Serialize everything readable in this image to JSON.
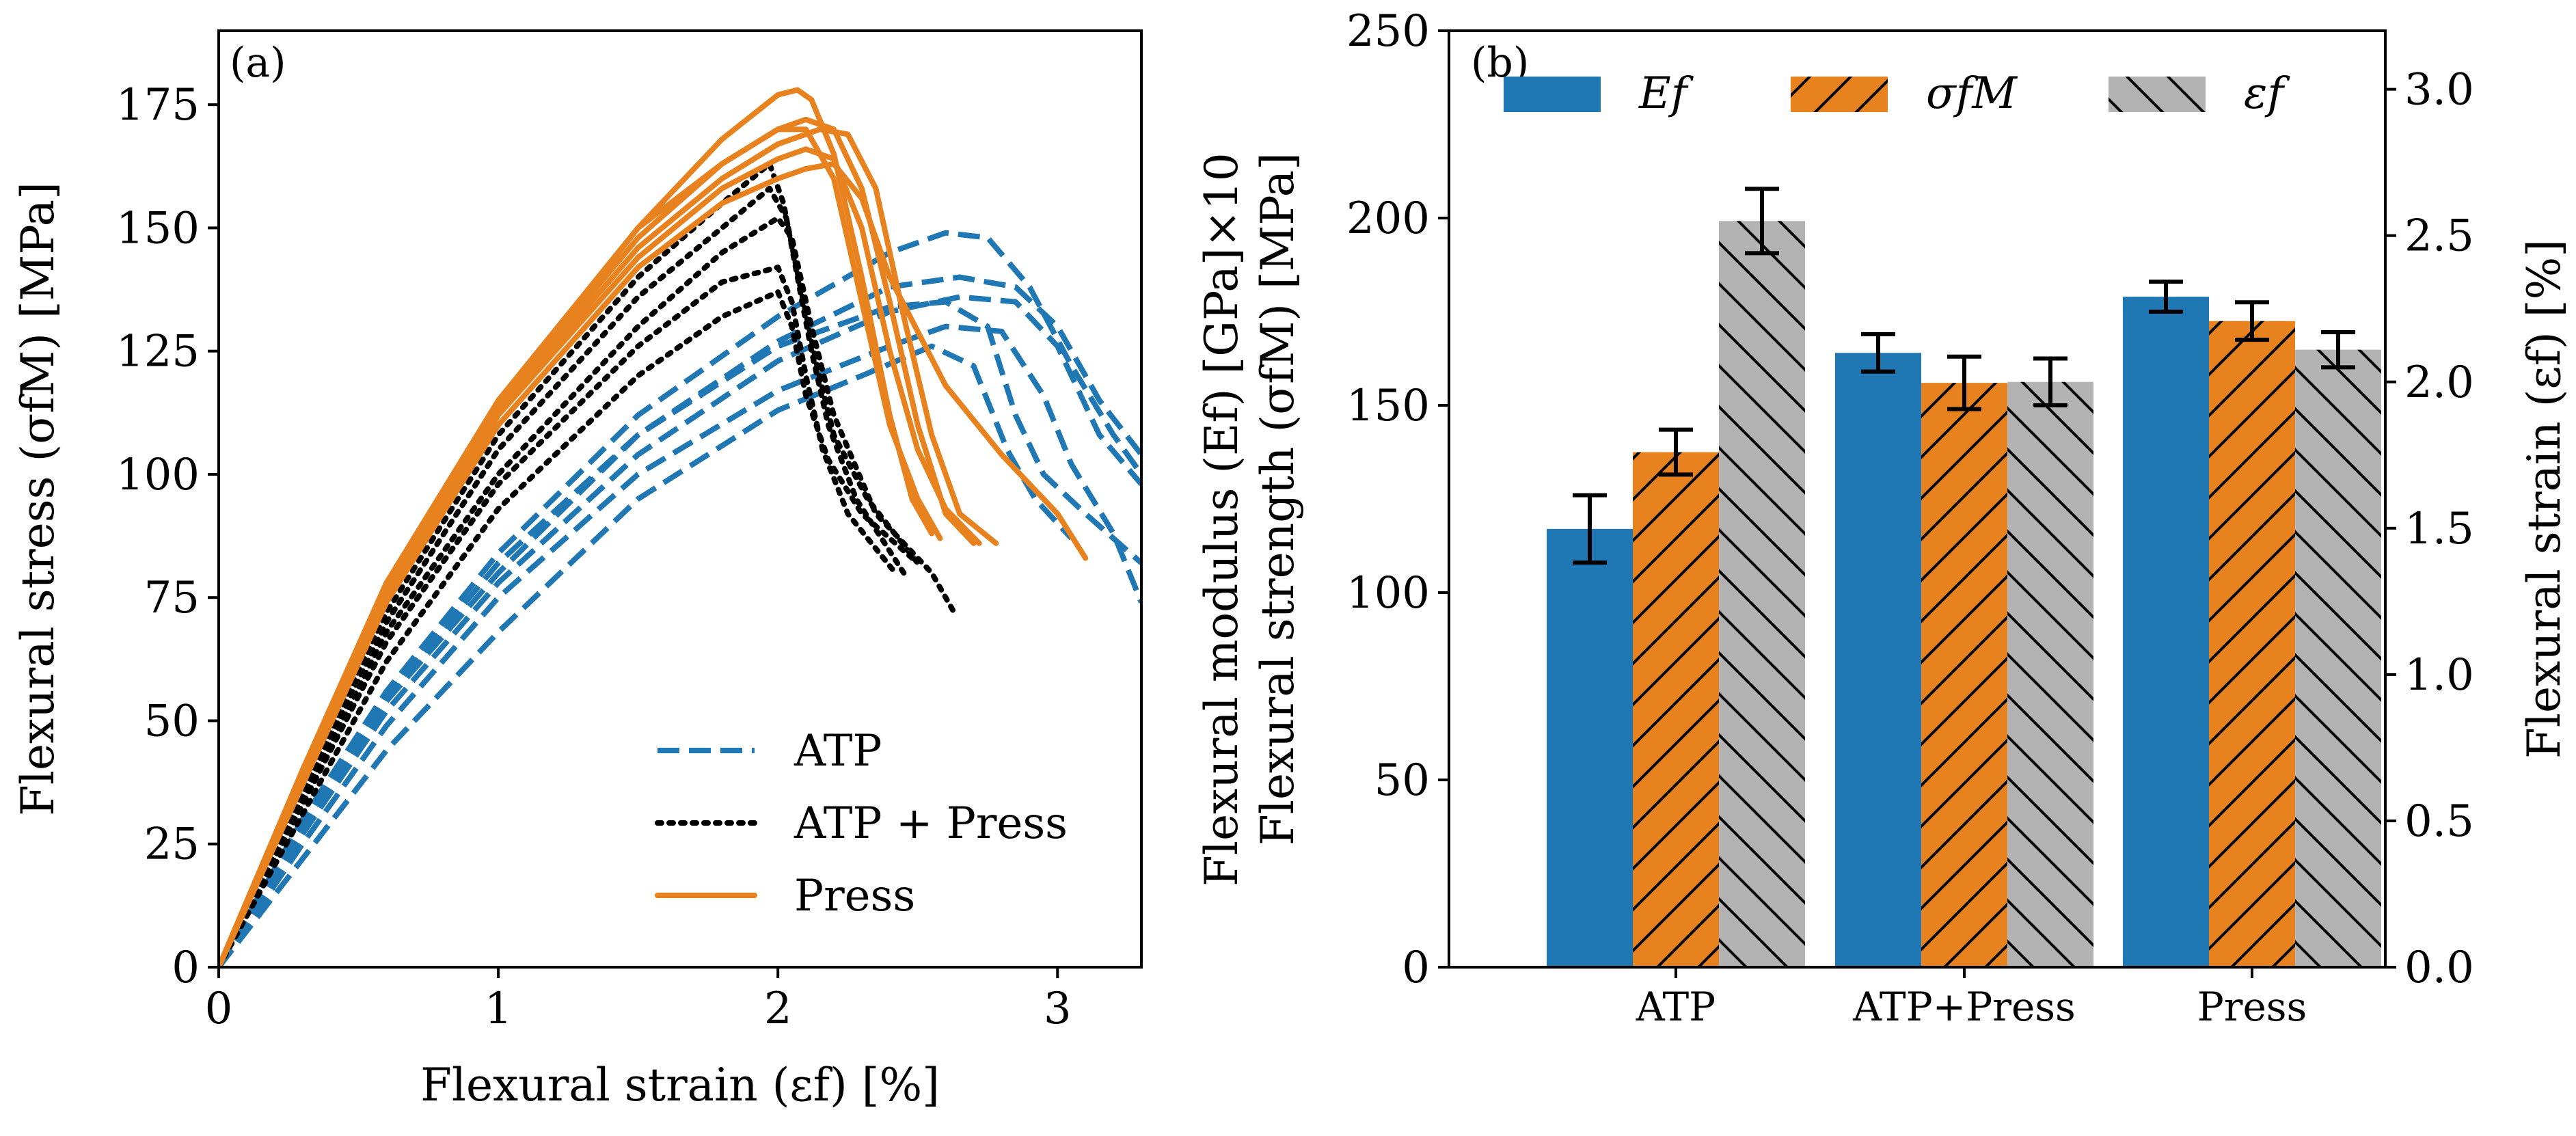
{
  "chart_data": [
    {
      "panel": "(a)",
      "type": "line",
      "xlabel": "Flexural strain (εf) [%]",
      "ylabel": "Flexural stress (σfM) [MPa]",
      "xlim": [
        0,
        3.3
      ],
      "ylim": [
        0,
        190
      ],
      "xticks": [
        0,
        1,
        2,
        3
      ],
      "yticks": [
        0,
        25,
        50,
        75,
        100,
        125,
        150,
        175
      ],
      "legend_position": "lower-right",
      "groups": [
        {
          "name": "ATP",
          "color": "#1f77b4",
          "dash": "dashed",
          "curves": [
            [
              [
                0,
                0
              ],
              [
                0.3,
                30
              ],
              [
                0.6,
                56
              ],
              [
                1.0,
                84
              ],
              [
                1.5,
                112
              ],
              [
                2.0,
                132
              ],
              [
                2.4,
                145
              ],
              [
                2.6,
                149
              ],
              [
                2.75,
                148
              ],
              [
                2.9,
                138
              ],
              [
                3.05,
                122
              ],
              [
                3.2,
                108
              ],
              [
                3.3,
                100
              ]
            ],
            [
              [
                0,
                0
              ],
              [
                0.3,
                28
              ],
              [
                0.6,
                54
              ],
              [
                1.0,
                80
              ],
              [
                1.5,
                108
              ],
              [
                2.0,
                127
              ],
              [
                2.4,
                138
              ],
              [
                2.65,
                140
              ],
              [
                2.85,
                138
              ],
              [
                3.0,
                130
              ],
              [
                3.15,
                115
              ],
              [
                3.3,
                104
              ]
            ],
            [
              [
                0,
                0
              ],
              [
                0.3,
                27
              ],
              [
                0.6,
                52
              ],
              [
                1.0,
                78
              ],
              [
                1.5,
                104
              ],
              [
                2.0,
                123
              ],
              [
                2.4,
                133
              ],
              [
                2.65,
                136
              ],
              [
                2.85,
                135
              ],
              [
                3.0,
                126
              ],
              [
                3.15,
                108
              ],
              [
                3.3,
                98
              ]
            ],
            [
              [
                0,
                0
              ],
              [
                0.3,
                29
              ],
              [
                0.6,
                55
              ],
              [
                1.0,
                82
              ],
              [
                1.5,
                108
              ],
              [
                2.0,
                126
              ],
              [
                2.4,
                134
              ],
              [
                2.6,
                135
              ],
              [
                2.75,
                130
              ],
              [
                2.85,
                112
              ],
              [
                2.95,
                100
              ],
              [
                3.1,
                92
              ],
              [
                3.3,
                82
              ]
            ],
            [
              [
                0,
                0
              ],
              [
                0.3,
                25
              ],
              [
                0.6,
                49
              ],
              [
                1.0,
                75
              ],
              [
                1.5,
                100
              ],
              [
                2.0,
                117
              ],
              [
                2.4,
                126
              ],
              [
                2.6,
                130
              ],
              [
                2.8,
                129
              ],
              [
                2.95,
                116
              ],
              [
                3.05,
                102
              ],
              [
                3.2,
                88
              ],
              [
                3.3,
                74
              ]
            ],
            [
              [
                0,
                0
              ],
              [
                0.3,
                22
              ],
              [
                0.6,
                44
              ],
              [
                1.0,
                68
              ],
              [
                1.5,
                95
              ],
              [
                2.0,
                113
              ],
              [
                2.3,
                120
              ],
              [
                2.55,
                126
              ],
              [
                2.7,
                122
              ],
              [
                2.82,
                105
              ],
              [
                2.92,
                95
              ],
              [
                3.05,
                87
              ]
            ]
          ]
        },
        {
          "name": "ATP + Press",
          "color": "#000000",
          "dash": "dotted",
          "curves": [
            [
              [
                0,
                0
              ],
              [
                0.3,
                36
              ],
              [
                0.6,
                72
              ],
              [
                1.0,
                108
              ],
              [
                1.5,
                140
              ],
              [
                1.8,
                155
              ],
              [
                1.97,
                163
              ],
              [
                2.02,
                155
              ],
              [
                2.07,
                140
              ],
              [
                2.12,
                125
              ],
              [
                2.18,
                110
              ],
              [
                2.28,
                95
              ],
              [
                2.45,
                80
              ]
            ],
            [
              [
                0,
                0
              ],
              [
                0.3,
                35
              ],
              [
                0.6,
                70
              ],
              [
                1.0,
                105
              ],
              [
                1.5,
                136
              ],
              [
                1.8,
                150
              ],
              [
                1.97,
                158
              ],
              [
                2.03,
                152
              ],
              [
                2.08,
                138
              ],
              [
                2.14,
                122
              ],
              [
                2.2,
                108
              ],
              [
                2.32,
                95
              ],
              [
                2.5,
                82
              ]
            ],
            [
              [
                0,
                0
              ],
              [
                0.3,
                33
              ],
              [
                0.6,
                66
              ],
              [
                1.0,
                98
              ],
              [
                1.5,
                126
              ],
              [
                1.8,
                139
              ],
              [
                2.0,
                142
              ],
              [
                2.05,
                135
              ],
              [
                2.1,
                120
              ],
              [
                2.16,
                105
              ],
              [
                2.25,
                92
              ],
              [
                2.42,
                80
              ]
            ],
            [
              [
                0,
                0
              ],
              [
                0.3,
                31
              ],
              [
                0.6,
                62
              ],
              [
                1.0,
                93
              ],
              [
                1.5,
                120
              ],
              [
                1.8,
                132
              ],
              [
                2.0,
                137
              ],
              [
                2.05,
                130
              ],
              [
                2.1,
                116
              ],
              [
                2.18,
                103
              ],
              [
                2.3,
                92
              ],
              [
                2.5,
                82
              ]
            ],
            [
              [
                0,
                0
              ],
              [
                0.3,
                34
              ],
              [
                0.6,
                68
              ],
              [
                1.0,
                100
              ],
              [
                1.5,
                130
              ],
              [
                1.8,
                145
              ],
              [
                2.0,
                152
              ],
              [
                2.05,
                148
              ],
              [
                2.12,
                130
              ],
              [
                2.2,
                112
              ],
              [
                2.35,
                92
              ],
              [
                2.55,
                80
              ],
              [
                2.63,
                72
              ]
            ]
          ]
        },
        {
          "name": "Press",
          "color": "#e8821e",
          "dash": "solid",
          "curves": [
            [
              [
                0,
                0
              ],
              [
                0.3,
                40
              ],
              [
                0.6,
                78
              ],
              [
                1.0,
                115
              ],
              [
                1.5,
                150
              ],
              [
                1.8,
                168
              ],
              [
                2.0,
                177
              ],
              [
                2.07,
                178
              ],
              [
                2.12,
                176
              ],
              [
                2.2,
                165
              ],
              [
                2.3,
                140
              ],
              [
                2.4,
                112
              ],
              [
                2.48,
                95
              ],
              [
                2.55,
                88
              ]
            ],
            [
              [
                0,
                0
              ],
              [
                0.3,
                39
              ],
              [
                0.6,
                77
              ],
              [
                1.0,
                114
              ],
              [
                1.5,
                148
              ],
              [
                1.8,
                163
              ],
              [
                2.0,
                170
              ],
              [
                2.1,
                172
              ],
              [
                2.2,
                170
              ],
              [
                2.3,
                158
              ],
              [
                2.4,
                135
              ],
              [
                2.5,
                110
              ],
              [
                2.6,
                92
              ],
              [
                2.7,
                86
              ]
            ],
            [
              [
                0,
                0
              ],
              [
                0.3,
                38
              ],
              [
                0.6,
                76
              ],
              [
                1.0,
                113
              ],
              [
                1.5,
                146
              ],
              [
                1.8,
                160
              ],
              [
                2.0,
                167
              ],
              [
                2.15,
                170
              ],
              [
                2.25,
                169
              ],
              [
                2.35,
                158
              ],
              [
                2.45,
                132
              ],
              [
                2.55,
                108
              ],
              [
                2.65,
                92
              ],
              [
                2.78,
                86
              ]
            ],
            [
              [
                0,
                0
              ],
              [
                0.3,
                38
              ],
              [
                0.6,
                75
              ],
              [
                1.0,
                112
              ],
              [
                1.5,
                144
              ],
              [
                1.8,
                158
              ],
              [
                2.0,
                164
              ],
              [
                2.1,
                166
              ],
              [
                2.2,
                164
              ],
              [
                2.3,
                150
              ],
              [
                2.4,
                125
              ],
              [
                2.5,
                105
              ],
              [
                2.6,
                93
              ],
              [
                2.72,
                86
              ]
            ],
            [
              [
                0,
                0
              ],
              [
                0.3,
                37
              ],
              [
                0.6,
                74
              ],
              [
                1.0,
                110
              ],
              [
                1.5,
                142
              ],
              [
                1.8,
                155
              ],
              [
                2.0,
                160
              ],
              [
                2.1,
                162
              ],
              [
                2.2,
                163
              ],
              [
                2.3,
                156
              ],
              [
                2.4,
                140
              ],
              [
                2.6,
                118
              ],
              [
                2.8,
                104
              ],
              [
                3.0,
                92
              ],
              [
                3.1,
                83
              ]
            ],
            [
              [
                0,
                0
              ],
              [
                0.3,
                40
              ],
              [
                0.6,
                78
              ],
              [
                1.0,
                114
              ],
              [
                1.5,
                150
              ],
              [
                1.8,
                163
              ],
              [
                2.0,
                170
              ],
              [
                2.1,
                170
              ],
              [
                2.2,
                160
              ],
              [
                2.3,
                135
              ],
              [
                2.4,
                110
              ],
              [
                2.5,
                95
              ],
              [
                2.58,
                87
              ]
            ]
          ]
        }
      ]
    },
    {
      "panel": "(b)",
      "type": "bar",
      "categories": [
        "ATP",
        "ATP+Press",
        "Press"
      ],
      "ylabel_left_line1": "Flexural modulus (Ef) [GPa]×10",
      "ylabel_left_line2": "Flexural strength (σfM) [MPa]",
      "ylabel_right": "Flexural strain (εf) [%]",
      "ylim_left": [
        0,
        250
      ],
      "ylim_right": [
        0,
        3.2
      ],
      "yticks_left": [
        0,
        50,
        100,
        150,
        200,
        250
      ],
      "yticks_right": [
        0.0,
        0.5,
        1.0,
        1.5,
        2.0,
        2.5,
        3.0
      ],
      "legend_position": "top",
      "series": [
        {
          "name": "Ef",
          "color": "#1f77b4",
          "hatch": "none",
          "axis": "left",
          "values": [
            117,
            164,
            179
          ],
          "errors": [
            9,
            5,
            4
          ]
        },
        {
          "name": "σfM",
          "color": "#e8821e",
          "hatch": "forward",
          "axis": "left",
          "values": [
            137.5,
            156,
            172.5
          ],
          "errors": [
            6,
            7,
            5
          ]
        },
        {
          "name": "εf",
          "color": "#b3b3b3",
          "hatch": "back",
          "axis": "right",
          "values": [
            2.55,
            2.0,
            2.11
          ],
          "errors": [
            0.11,
            0.08,
            0.06
          ]
        }
      ]
    }
  ]
}
